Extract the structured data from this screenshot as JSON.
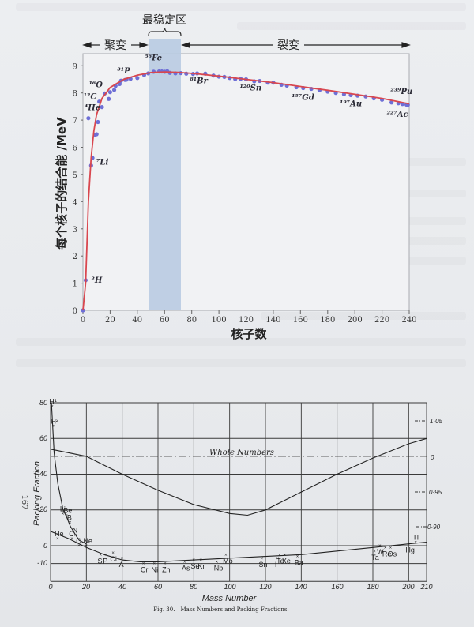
{
  "chart_data": [
    {
      "type": "scatter",
      "title": "",
      "xlabel": "核子数",
      "ylabel": "每个核子的结合能 /MeV",
      "xlim": [
        0,
        240
      ],
      "ylim": [
        0,
        9.3
      ],
      "xticks": [
        0,
        20,
        40,
        60,
        80,
        100,
        120,
        140,
        160,
        180,
        200,
        220,
        240
      ],
      "yticks": [
        0,
        1,
        2,
        3,
        4,
        5,
        6,
        7,
        8,
        9
      ],
      "grid": false,
      "regions": [
        {
          "label": "聚变",
          "x_range": [
            0,
            48
          ],
          "kind": "arrow"
        },
        {
          "label": "最稳定区",
          "x_range": [
            48,
            72
          ],
          "kind": "shaded",
          "color": "#b7c9e0"
        },
        {
          "label": "裂变",
          "x_range": [
            72,
            240
          ],
          "kind": "arrow"
        }
      ],
      "series": [
        {
          "name": "nuclides",
          "marker_color": "#6e6fd6",
          "x": [
            0,
            2,
            4,
            6,
            7,
            9,
            10,
            11,
            12,
            14,
            16,
            19,
            20,
            23,
            24,
            27,
            28,
            31,
            32,
            35,
            40,
            45,
            48,
            52,
            56,
            58,
            60,
            62,
            64,
            68,
            72,
            76,
            81,
            84,
            90,
            96,
            100,
            104,
            108,
            112,
            116,
            120,
            126,
            130,
            136,
            140,
            146,
            150,
            157,
            162,
            168,
            174,
            180,
            186,
            192,
            197,
            202,
            208,
            214,
            220,
            227,
            232,
            235,
            238,
            239
          ],
          "y": [
            0,
            1.11,
            7.07,
            5.33,
            5.61,
            6.46,
            6.48,
            6.93,
            7.68,
            7.48,
            7.98,
            7.78,
            8.03,
            8.11,
            8.26,
            8.33,
            8.45,
            8.48,
            8.49,
            8.52,
            8.55,
            8.66,
            8.72,
            8.78,
            8.79,
            8.79,
            8.78,
            8.8,
            8.74,
            8.72,
            8.73,
            8.71,
            8.7,
            8.72,
            8.71,
            8.64,
            8.6,
            8.59,
            8.55,
            8.51,
            8.52,
            8.5,
            8.43,
            8.44,
            8.38,
            8.38,
            8.3,
            8.27,
            8.21,
            8.18,
            8.15,
            8.1,
            8.05,
            8.0,
            7.95,
            7.92,
            7.9,
            7.87,
            7.8,
            7.75,
            7.65,
            7.62,
            7.59,
            7.57,
            7.56
          ]
        },
        {
          "name": "fit curve",
          "line_color": "#d9474f",
          "x": [
            0,
            2,
            4,
            6,
            8,
            10,
            14,
            20,
            30,
            40,
            50,
            60,
            70,
            80,
            100,
            120,
            140,
            160,
            180,
            200,
            220,
            240
          ],
          "y": [
            0,
            1.0,
            4.0,
            5.6,
            6.6,
            7.2,
            7.8,
            8.2,
            8.5,
            8.65,
            8.75,
            8.77,
            8.76,
            8.72,
            8.62,
            8.5,
            8.38,
            8.24,
            8.1,
            7.95,
            7.8,
            7.6
          ]
        }
      ],
      "annotations": [
        {
          "text": "²H",
          "x": 2,
          "y": 1.1
        },
        {
          "text": "⁴He",
          "x": 4,
          "y": 7.07
        },
        {
          "text": "⁷Li",
          "x": 7,
          "y": 5.6
        },
        {
          "text": "¹²C",
          "x": 12,
          "y": 7.68
        },
        {
          "text": "¹⁶O",
          "x": 16,
          "y": 7.98
        },
        {
          "text": "³¹P",
          "x": 31,
          "y": 8.48
        },
        {
          "text": "⁵⁶Fe",
          "x": 56,
          "y": 8.79
        },
        {
          "text": "⁸¹Br",
          "x": 81,
          "y": 8.7
        },
        {
          "text": "¹²⁰Sn",
          "x": 120,
          "y": 8.5
        },
        {
          "text": "¹⁵⁷Gd",
          "x": 157,
          "y": 8.21
        },
        {
          "text": "¹⁹⁷Au",
          "x": 197,
          "y": 7.92
        },
        {
          "text": "²²⁷Ac",
          "x": 227,
          "y": 7.65
        },
        {
          "text": "²³⁹Pu",
          "x": 239,
          "y": 7.56
        }
      ]
    },
    {
      "type": "line",
      "title": "Fig. 30.—Mass Numbers and Packing Fractions.",
      "xlabel": "Mass Number",
      "ylabel": "Packing Fraction",
      "xlim": [
        0,
        210
      ],
      "ylim": [
        -20,
        80
      ],
      "xticks": [
        0,
        20,
        40,
        60,
        80,
        100,
        120,
        140,
        160,
        180,
        200,
        210
      ],
      "yticks": [
        -10,
        0,
        20,
        40,
        60,
        80
      ],
      "right_axis_ticks": [
        "1·05",
        "0",
        "0·95",
        "0·90"
      ],
      "grid": true,
      "reference_line": {
        "label": "Whole Numbers",
        "y": 50,
        "style": "dash-dot"
      },
      "series": [
        {
          "name": "packing fraction curve (light)",
          "x": [
            0.5,
            2,
            4,
            7,
            9,
            11,
            14,
            16,
            20
          ],
          "y": [
            80,
            52,
            35,
            20,
            16,
            11,
            6,
            3,
            1
          ]
        },
        {
          "name": "packing fraction curve (main)",
          "x": [
            0,
            10,
            16,
            20,
            30,
            40,
            50,
            60,
            80,
            100,
            120,
            140,
            160,
            180,
            200,
            210
          ],
          "y": [
            8,
            4,
            1,
            -1,
            -5,
            -8,
            -9,
            -9,
            -8,
            -7,
            -6,
            -5,
            -3,
            -1,
            1,
            2
          ]
        },
        {
          "name": "mass ratio curve (right axis)",
          "x": [
            0,
            20,
            40,
            60,
            80,
            100,
            110,
            120,
            140,
            160,
            180,
            200,
            210
          ],
          "y": [
            54,
            50,
            40,
            31,
            23,
            18,
            17,
            20,
            30,
            40,
            49,
            57,
            60
          ]
        }
      ],
      "points": [
        {
          "label": "H¹",
          "x": 1,
          "y": 78
        },
        {
          "label": "H²",
          "x": 2,
          "y": 67
        },
        {
          "label": "Li",
          "x": 7,
          "y": 18
        },
        {
          "label": "Be",
          "x": 9,
          "y": 17
        },
        {
          "label": "B",
          "x": 11,
          "y": 13
        },
        {
          "label": "He",
          "x": 4,
          "y": 4
        },
        {
          "label": "C",
          "x": 12,
          "y": 4
        },
        {
          "label": "N",
          "x": 14,
          "y": 6
        },
        {
          "label": "O",
          "x": 16,
          "y": 0
        },
        {
          "label": "Ne",
          "x": 20,
          "y": 0
        },
        {
          "label": "Si",
          "x": 28,
          "y": -5
        },
        {
          "label": "P",
          "x": 31,
          "y": -5
        },
        {
          "label": "Cl",
          "x": 35,
          "y": -4
        },
        {
          "label": "A",
          "x": 40,
          "y": -7
        },
        {
          "label": "Cr",
          "x": 52,
          "y": -10
        },
        {
          "label": "Ni",
          "x": 58,
          "y": -10
        },
        {
          "label": "Zn",
          "x": 64,
          "y": -10
        },
        {
          "label": "As",
          "x": 75,
          "y": -9
        },
        {
          "label": "Se",
          "x": 80,
          "y": -8
        },
        {
          "label": "Kr",
          "x": 84,
          "y": -8
        },
        {
          "label": "Mo",
          "x": 98,
          "y": -5
        },
        {
          "label": "Nb",
          "x": 93,
          "y": -9
        },
        {
          "label": "Sn",
          "x": 118,
          "y": -7
        },
        {
          "label": "Te",
          "x": 128,
          "y": -5
        },
        {
          "label": "I",
          "x": 127,
          "y": -7
        },
        {
          "label": "Xe",
          "x": 131,
          "y": -5
        },
        {
          "label": "Ba",
          "x": 138,
          "y": -6
        },
        {
          "label": "W",
          "x": 184,
          "y": 0
        },
        {
          "label": "Ta",
          "x": 181,
          "y": -3
        },
        {
          "label": "Re",
          "x": 187,
          "y": -1
        },
        {
          "label": "Os",
          "x": 190,
          "y": -1
        },
        {
          "label": "Hg",
          "x": 200,
          "y": 1
        },
        {
          "label": "Tl",
          "x": 204,
          "y": 2
        }
      ]
    }
  ],
  "top_chart": {
    "region_stable_label": "最稳定区",
    "fusion_label": "聚变",
    "fission_label": "裂变",
    "x_title": "核子数",
    "y_title": "每个核子的结合能 /MeV",
    "x_ticks": [
      "0",
      "20",
      "40",
      "60",
      "80",
      "100",
      "120",
      "140",
      "160",
      "180",
      "200",
      "220",
      "240"
    ],
    "y_ticks": [
      "0",
      "1",
      "2",
      "3",
      "4",
      "5",
      "6",
      "7",
      "8",
      "9"
    ]
  },
  "bottom_chart": {
    "page_number": "167",
    "y_title": "Packing Fraction",
    "x_title": "Mass Number",
    "caption": "Fig. 30.—Mass Numbers and Packing Fractions.",
    "whole_numbers_label": "Whole Numbers",
    "x_ticks": [
      "0",
      "20",
      "40",
      "60",
      "80",
      "100",
      "120",
      "140",
      "160",
      "180",
      "200",
      "210"
    ],
    "y_ticks": [
      "80",
      "60",
      "40",
      "20",
      "0",
      "-10"
    ],
    "right_ticks": [
      "1·05",
      "0",
      "0·95",
      "0·90"
    ]
  }
}
